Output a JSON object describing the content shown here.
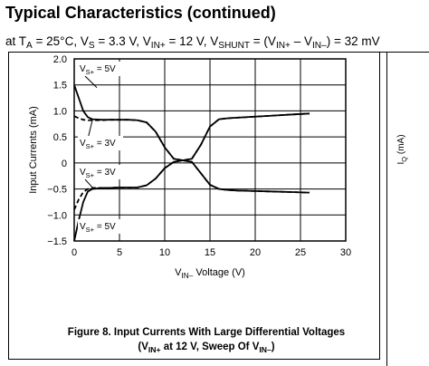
{
  "header": {
    "title": "Typical Characteristics (continued)",
    "conditions": [
      {
        "text": "at T"
      },
      {
        "text": "A",
        "sub": true
      },
      {
        "text": " = 25°C, V"
      },
      {
        "text": "S",
        "sub": true
      },
      {
        "text": " = 3.3 V, V"
      },
      {
        "text": "IN+",
        "sub": true
      },
      {
        "text": " = 12 V, V"
      },
      {
        "text": "SHUNT",
        "sub": true
      },
      {
        "text": " = (V"
      },
      {
        "text": "IN+",
        "sub": true
      },
      {
        "text": " – V"
      },
      {
        "text": "IN–",
        "sub": true
      },
      {
        "text": ") = 32 mV"
      }
    ]
  },
  "chart_data": {
    "type": "line",
    "y_label": [
      {
        "text": "Input Currents (mA)"
      }
    ],
    "x_label": [
      {
        "text": "V"
      },
      {
        "text": "IN–",
        "sub": true
      },
      {
        "text": " Voltage (V)"
      }
    ],
    "caption": [
      [
        {
          "text": "Figure 8. Input Currents With Large Differential Voltages"
        }
      ],
      [
        {
          "text": "(V"
        },
        {
          "text": "IN+",
          "sub": true
        },
        {
          "text": " at 12 V, Sweep Of V"
        },
        {
          "text": "IN–",
          "sub": true
        },
        {
          "text": ")"
        }
      ]
    ],
    "x": [
      0,
      0.5,
      1,
      1.5,
      2,
      3,
      4,
      5,
      6,
      7,
      8,
      9,
      10,
      11,
      12,
      13,
      14,
      15,
      16,
      17,
      18,
      20,
      22,
      24,
      26
    ],
    "series": [
      {
        "color": "#000000",
        "dash": false,
        "values": [
          1.5,
          1.25,
          1.0,
          0.88,
          0.84,
          0.83,
          0.83,
          0.83,
          0.83,
          0.82,
          0.78,
          0.6,
          0.3,
          0.08,
          0.05,
          0.08,
          0.35,
          0.7,
          0.84,
          0.86,
          0.87,
          0.89,
          0.91,
          0.93,
          0.95
        ]
      },
      {
        "color": "#000000",
        "dash": true,
        "values": [
          0.9,
          0.86,
          0.83,
          0.82,
          0.82,
          0.82,
          0.83,
          0.83,
          0.83,
          0.82,
          0.78,
          0.6,
          0.3,
          0.08,
          0.05,
          0.08,
          0.35,
          0.7,
          0.84,
          0.86,
          0.87,
          0.89,
          0.91,
          0.93,
          0.95
        ]
      },
      {
        "color": "#000000",
        "dash": false,
        "values": [
          -1.5,
          -1.1,
          -0.75,
          -0.55,
          -0.5,
          -0.48,
          -0.48,
          -0.47,
          -0.47,
          -0.47,
          -0.43,
          -0.3,
          -0.1,
          0.02,
          0.05,
          0.02,
          -0.2,
          -0.42,
          -0.5,
          -0.52,
          -0.53,
          -0.54,
          -0.55,
          -0.56,
          -0.57
        ]
      },
      {
        "color": "#000000",
        "dash": true,
        "values": [
          -0.9,
          -0.7,
          -0.56,
          -0.5,
          -0.48,
          -0.48,
          -0.48,
          -0.47,
          -0.47,
          -0.47,
          -0.43,
          -0.3,
          -0.1,
          0.02,
          0.05,
          0.02,
          -0.2,
          -0.42,
          -0.5,
          -0.52,
          -0.53,
          -0.54,
          -0.55,
          -0.56,
          -0.57
        ]
      }
    ],
    "annotations": [
      [
        {
          "text": "V"
        },
        {
          "text": "S+",
          "sub": true
        },
        {
          "text": " = 5V"
        }
      ],
      [
        {
          "text": "V"
        },
        {
          "text": "S+",
          "sub": true
        },
        {
          "text": " = 3V"
        }
      ],
      [
        {
          "text": "V"
        },
        {
          "text": "S+",
          "sub": true
        },
        {
          "text": " = 3V"
        }
      ],
      [
        {
          "text": "V"
        },
        {
          "text": "S+",
          "sub": true
        },
        {
          "text": " = 5V"
        }
      ]
    ],
    "xlim": [
      0,
      30
    ],
    "xticks": [
      0,
      5,
      10,
      15,
      20,
      25,
      30
    ],
    "ylim": [
      -1.5,
      2
    ],
    "yticks": [
      {
        "value": -1.5,
        "label": "−1.5"
      },
      {
        "value": -1,
        "label": "−1.0"
      },
      {
        "value": -0.5,
        "label": "−0.5"
      },
      0,
      {
        "value": 0.5,
        "label": "0.5"
      },
      {
        "value": 1,
        "label": "1.0"
      },
      {
        "value": 1.5,
        "label": "1.5"
      },
      {
        "value": 2,
        "label": "2.0"
      }
    ],
    "grid": true
  },
  "next_panel": {
    "y_label": [
      {
        "text": "I"
      },
      {
        "text": "Q",
        "sub": true
      },
      {
        "text": " (mA)"
      }
    ]
  }
}
